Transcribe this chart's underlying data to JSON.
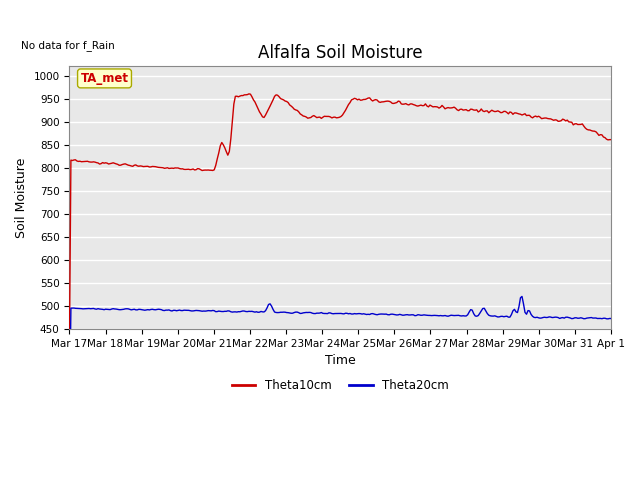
{
  "title": "Alfalfa Soil Moisture",
  "subtitle": "No data for f_Rain",
  "xlabel": "Time",
  "ylabel": "Soil Moisture",
  "ylim": [
    450,
    1020
  ],
  "yticks": [
    450,
    500,
    550,
    600,
    650,
    700,
    750,
    800,
    850,
    900,
    950,
    1000
  ],
  "background_color": "#e8e8e8",
  "grid_color": "#ffffff",
  "theta10_color": "#cc0000",
  "theta20_color": "#0000cc",
  "legend_label1": "Theta10cm",
  "legend_label2": "Theta20cm",
  "ta_met_label": "TA_met",
  "ta_met_box_color": "#ffffcc",
  "ta_met_text_color": "#cc0000",
  "x_tick_labels": [
    "Mar 17",
    "Mar 18",
    "Mar 19",
    "Mar 20",
    "Mar 21",
    "Mar 22",
    "Mar 23",
    "Mar 24",
    "Mar 25",
    "Mar 26",
    "Mar 27",
    "Mar 28",
    "Mar 29",
    "Mar 30",
    "Mar 31",
    "Apr 1"
  ],
  "title_fontsize": 12,
  "axis_label_fontsize": 9,
  "tick_fontsize": 7.5
}
